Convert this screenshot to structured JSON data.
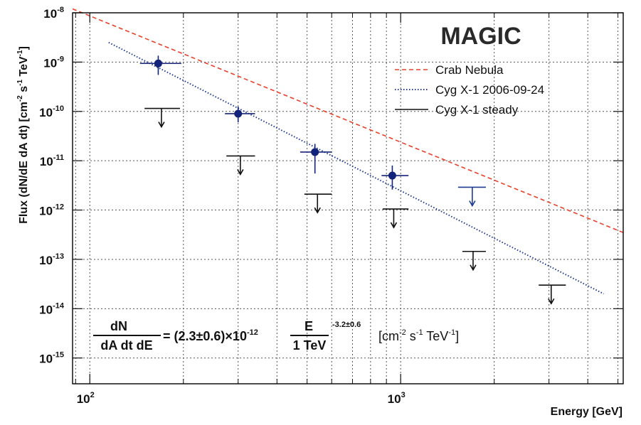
{
  "chart_data": {
    "type": "scatter",
    "logo": "MAGIC",
    "xlabel": "Energy [GeV]",
    "ylabel": "Flux (dN/dE dA dt) [cm^-2 s^-1 TeV^-1]",
    "x_scale": "log",
    "y_scale": "log",
    "xlim": [
      88,
      5200
    ],
    "ylim": [
      3e-16,
      1e-08
    ],
    "grid": true,
    "legend_position": "top-right",
    "x_tick_labels": [
      {
        "value": 100,
        "base": "10",
        "exp": "2"
      },
      {
        "value": 1000,
        "base": "10",
        "exp": "3"
      }
    ],
    "y_tick_labels": [
      {
        "value": 1e-08,
        "base": "10",
        "exp": "-8"
      },
      {
        "value": 1e-09,
        "base": "10",
        "exp": "-9"
      },
      {
        "value": 1e-10,
        "base": "10",
        "exp": "-10"
      },
      {
        "value": 1e-11,
        "base": "10",
        "exp": "-11"
      },
      {
        "value": 1e-12,
        "base": "10",
        "exp": "-12"
      },
      {
        "value": 1e-13,
        "base": "10",
        "exp": "-13"
      },
      {
        "value": 1e-14,
        "base": "10",
        "exp": "-14"
      },
      {
        "value": 1e-15,
        "base": "10",
        "exp": "-15"
      }
    ],
    "series": [
      {
        "name": "Crab Nebula",
        "kind": "line",
        "style": "dashed",
        "color": "#e8402a",
        "x": [
          88,
          5200
        ],
        "y": [
          1.2e-08,
          3.5e-13
        ]
      },
      {
        "name": "Cyg X-1 2006-09-24",
        "kind": "line",
        "style": "dotted",
        "color": "#1f3a93",
        "x": [
          115,
          4500
        ],
        "y": [
          2.5e-09,
          2e-14
        ]
      },
      {
        "name": "Cyg X-1 2006-09-24 points",
        "kind": "points",
        "color": "#14237a",
        "x": [
          166,
          300,
          530,
          940
        ],
        "y": [
          9.4e-10,
          9e-11,
          1.5e-11,
          5e-12
        ],
        "x_low": [
          145,
          272,
          475,
          868
        ],
        "x_high": [
          197,
          340,
          600,
          1060
        ],
        "y_low": [
          5.5e-10,
          6e-11,
          5.5e-12,
          2.6e-12
        ],
        "y_high": [
          1.35e-09,
          1.25e-10,
          2.2e-11,
          8e-12
        ]
      },
      {
        "name": "Cyg X-1 2006-09-24 upper limits",
        "kind": "upper_limits",
        "color": "#1f3a93",
        "x": [
          1700
        ],
        "y": [
          2.9e-12
        ],
        "x_low": [
          1530
        ],
        "x_high": [
          1880
        ]
      },
      {
        "name": "Cyg X-1 steady",
        "kind": "upper_limits",
        "color": "#111111",
        "x": [
          170,
          305,
          540,
          950,
          1710,
          3050
        ],
        "y": [
          1.15e-10,
          1.25e-11,
          2.1e-12,
          1.05e-12,
          1.45e-13,
          3e-14
        ],
        "x_low": [
          150,
          275,
          490,
          875,
          1580,
          2780
        ],
        "x_high": [
          195,
          340,
          600,
          1060,
          1880,
          3400
        ]
      }
    ],
    "legend": [
      {
        "label": "Crab Nebula",
        "style": "dashed",
        "color": "#e8402a"
      },
      {
        "label": "Cyg X-1 2006-09-24",
        "style": "dotted",
        "color": "#1f3a93"
      },
      {
        "label": "Cyg X-1 steady",
        "style": "solid",
        "color": "#111111"
      }
    ],
    "formula": {
      "numerator": "dN",
      "denominator": "dA dt dE",
      "equals_prefix": "= (2.3±0.6)×10",
      "prefix_exponent": "-12",
      "fraction_numerator": "E",
      "fraction_denominator": "1 TeV",
      "index_exponent": "-3.2±0.6",
      "unit_prefix": "[cm",
      "unit_exp1": "-2",
      "unit_mid1": " s",
      "unit_exp2": "-1",
      "unit_mid2": " TeV",
      "unit_exp3": "-1",
      "unit_suffix": "]"
    }
  }
}
